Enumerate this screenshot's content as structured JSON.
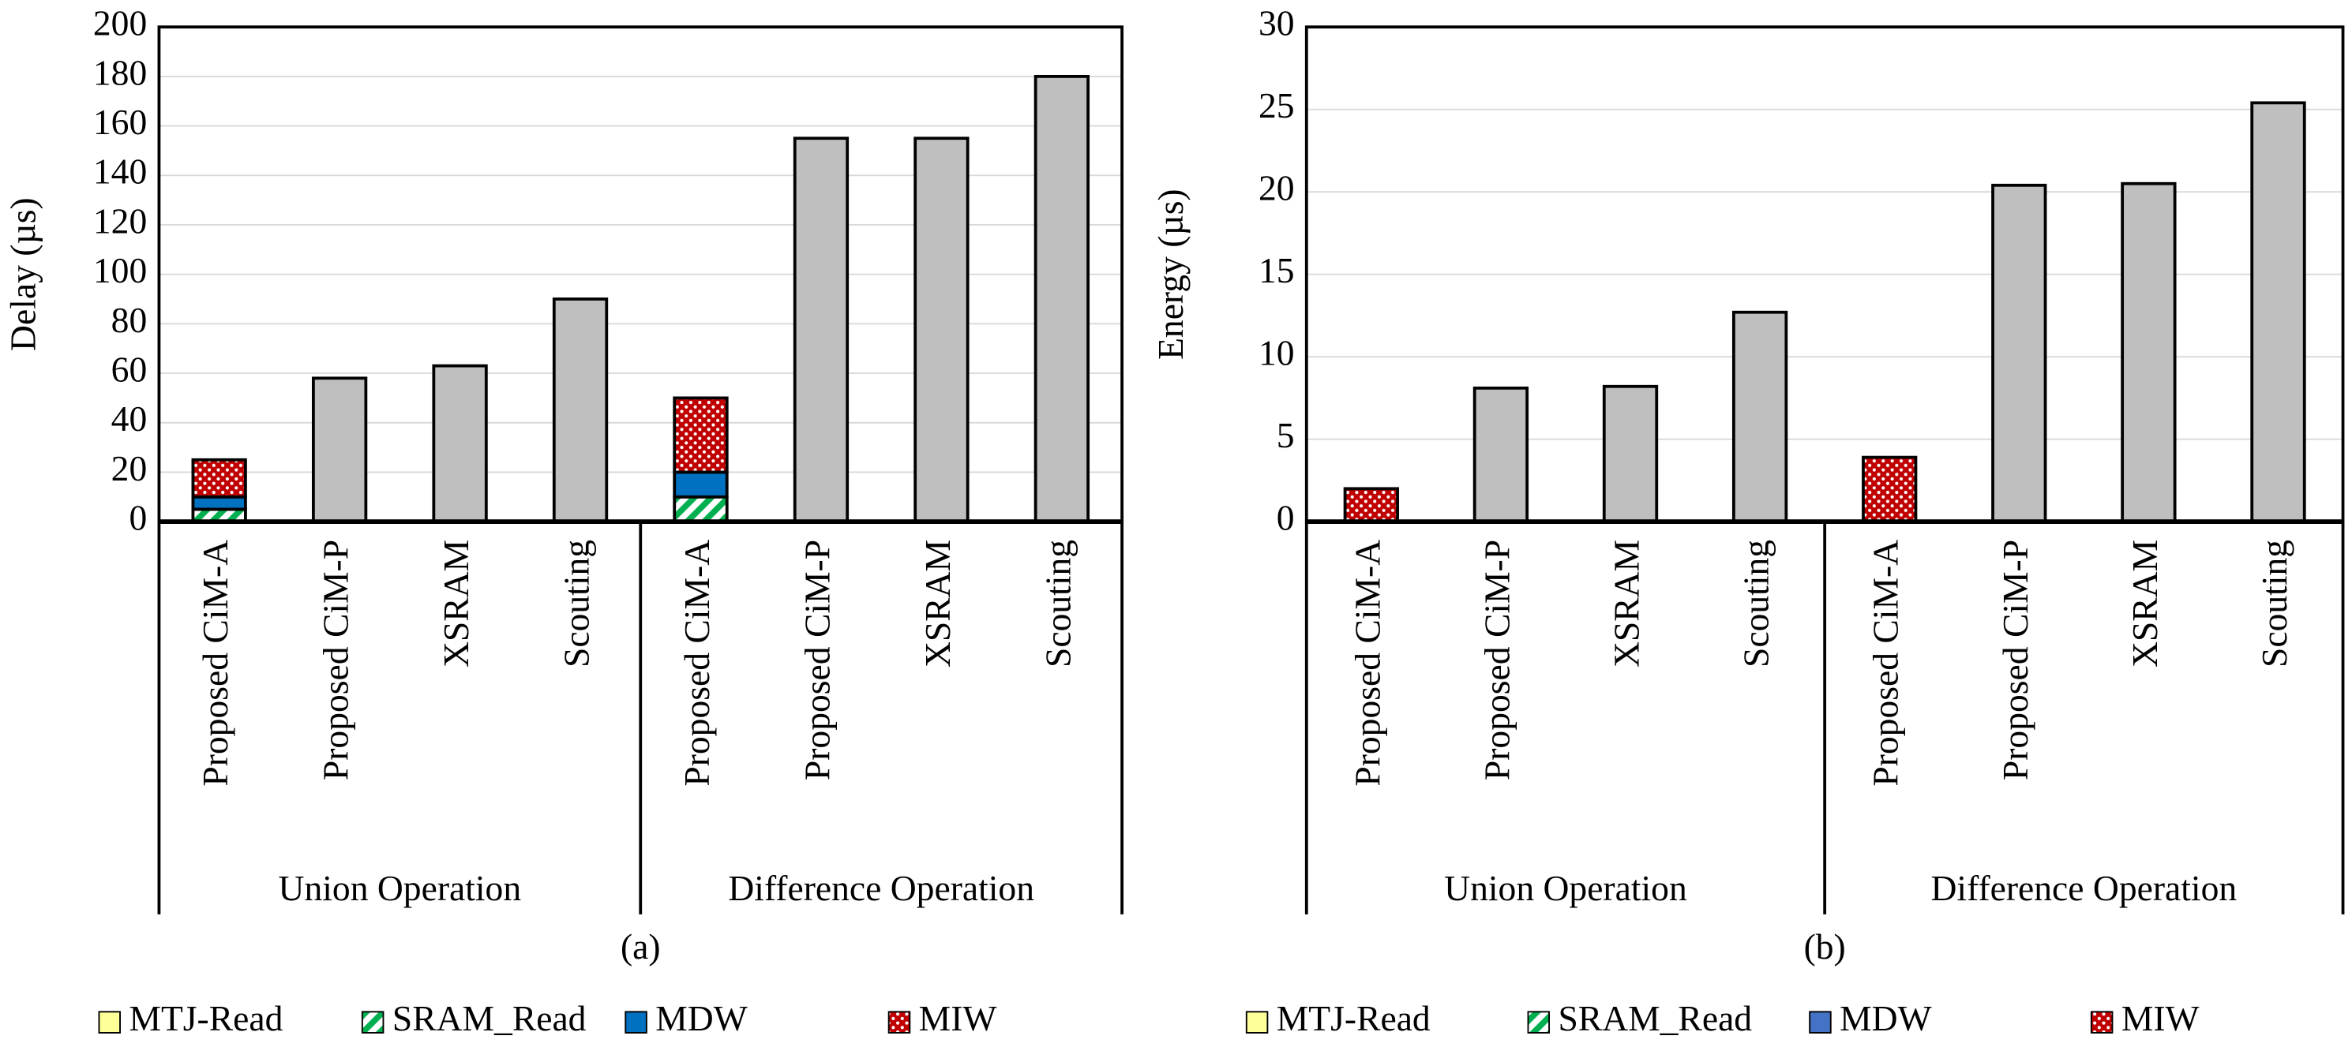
{
  "chart_data": [
    {
      "type": "bar",
      "stacked": true,
      "caption": "(a)",
      "ylabel": "Delay (µs)",
      "ylim": [
        0,
        200
      ],
      "yticks": [
        0,
        20,
        40,
        60,
        80,
        100,
        120,
        140,
        160,
        180,
        200
      ],
      "grid": true,
      "legend": "bottom",
      "groups": [
        {
          "label": "Union Operation",
          "categories": [
            "Proposed CiM-A",
            "Proposed CiM-P",
            "XSRAM",
            "Scouting"
          ]
        },
        {
          "label": "Difference Operation",
          "categories": [
            "Proposed CiM-A",
            "Proposed CiM-P",
            "XSRAM",
            "Scouting"
          ]
        }
      ],
      "series": [
        {
          "name": "MTJ-Read",
          "color": "#ffff99",
          "pattern": "solid",
          "values": [
            0,
            null,
            null,
            null,
            0,
            null,
            null,
            null
          ]
        },
        {
          "name": "SRAM_Read",
          "color": "#00b050",
          "pattern": "diagonal",
          "values": [
            5,
            null,
            null,
            null,
            10,
            null,
            null,
            null
          ]
        },
        {
          "name": "MDW",
          "color": "#0070c0",
          "pattern": "solid",
          "values": [
            5,
            null,
            null,
            null,
            10,
            null,
            null,
            null
          ]
        },
        {
          "name": "MIW",
          "color": "#c00000",
          "pattern": "dots",
          "values": [
            15,
            null,
            null,
            null,
            30,
            null,
            null,
            null
          ]
        },
        {
          "color": "#bfbfbf",
          "pattern": "solid",
          "values": [
            null,
            58,
            63,
            90,
            null,
            155,
            155,
            180
          ]
        }
      ]
    },
    {
      "type": "bar",
      "stacked": true,
      "caption": "(b)",
      "ylabel": "Energy (µs)",
      "ylim": [
        0,
        30
      ],
      "yticks": [
        0,
        5,
        10,
        15,
        20,
        25,
        30
      ],
      "grid": true,
      "legend": "bottom",
      "groups": [
        {
          "label": "Union Operation",
          "categories": [
            "Proposed CiM-A",
            "Proposed CiM-P",
            "XSRAM",
            "Scouting"
          ]
        },
        {
          "label": "Difference Operation",
          "categories": [
            "Proposed CiM-A",
            "Proposed CiM-P",
            "XSRAM",
            "Scouting"
          ]
        }
      ],
      "series": [
        {
          "name": "MTJ-Read",
          "color": "#ffff99",
          "pattern": "solid",
          "values": [
            0,
            null,
            null,
            null,
            0,
            null,
            null,
            null
          ]
        },
        {
          "name": "SRAM_Read",
          "color": "#00b050",
          "pattern": "diagonal",
          "values": [
            0,
            null,
            null,
            null,
            0,
            null,
            null,
            null
          ]
        },
        {
          "name": "MDW",
          "color": "#4472c4",
          "pattern": "solid",
          "values": [
            0,
            null,
            null,
            null,
            0,
            null,
            null,
            null
          ]
        },
        {
          "name": "MIW",
          "color": "#c00000",
          "pattern": "dots",
          "values": [
            2,
            null,
            null,
            null,
            3.9,
            null,
            null,
            null
          ]
        },
        {
          "color": "#bfbfbf",
          "pattern": "solid",
          "values": [
            null,
            8.1,
            8.2,
            12.7,
            null,
            20.4,
            20.5,
            25.4
          ]
        }
      ]
    }
  ]
}
